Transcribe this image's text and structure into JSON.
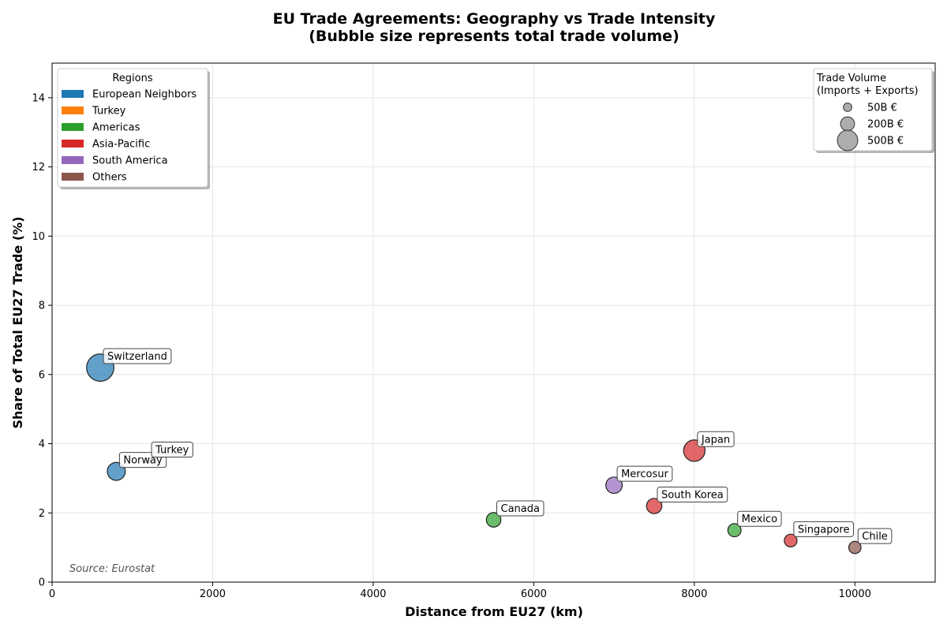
{
  "chart_data": {
    "type": "scatter",
    "title": "EU Trade Agreements: Geography vs Trade Intensity",
    "subtitle": "(Bubble size represents total trade volume)",
    "xlabel": "Distance from EU27 (km)",
    "ylabel": "Share of Total EU27 Trade (%)",
    "xlim": [
      0,
      11000
    ],
    "ylim": [
      0,
      15
    ],
    "xticks": [
      0,
      2000,
      4000,
      6000,
      8000,
      10000
    ],
    "yticks": [
      0,
      2,
      4,
      6,
      8,
      10,
      12,
      14
    ],
    "grid": true,
    "points": [
      {
        "label": "Switzerland",
        "x": 600,
        "y": 6.2,
        "volume": 320,
        "region": "European Neighbors"
      },
      {
        "label": "Norway",
        "x": 800,
        "y": 3.2,
        "volume": 110,
        "region": "European Neighbors"
      },
      {
        "label": "Turkey",
        "x": 1200,
        "y": 3.5,
        "volume": 0,
        "region": "Turkey"
      },
      {
        "label": "Canada",
        "x": 5500,
        "y": 1.8,
        "volume": 60,
        "region": "Americas"
      },
      {
        "label": "Mercosur",
        "x": 7000,
        "y": 2.8,
        "volume": 85,
        "region": "South America"
      },
      {
        "label": "Japan",
        "x": 8000,
        "y": 3.8,
        "volume": 175,
        "region": "Asia-Pacific"
      },
      {
        "label": "South Korea",
        "x": 7500,
        "y": 2.2,
        "volume": 70,
        "region": "Asia-Pacific"
      },
      {
        "label": "Mexico",
        "x": 8500,
        "y": 1.5,
        "volume": 45,
        "region": "Americas"
      },
      {
        "label": "Singapore",
        "x": 9200,
        "y": 1.2,
        "volume": 40,
        "region": "Asia-Pacific"
      },
      {
        "label": "Chile",
        "x": 10000,
        "y": 1.0,
        "volume": 35,
        "region": "Others"
      }
    ],
    "region_legend": {
      "title": "Regions",
      "placement": "top-left",
      "entries": [
        {
          "name": "European Neighbors",
          "color": "#1f77b4"
        },
        {
          "name": "Turkey",
          "color": "#ff7f0e"
        },
        {
          "name": "Americas",
          "color": "#2ca02c"
        },
        {
          "name": "Asia-Pacific",
          "color": "#d62728"
        },
        {
          "name": "South America",
          "color": "#9467bd"
        },
        {
          "name": "Others",
          "color": "#8c564b"
        }
      ]
    },
    "size_legend": {
      "title_line1": "Trade Volume",
      "title_line2": "(Imports + Exports)",
      "placement": "top-right",
      "entries": [
        {
          "label": "50B €",
          "volume": 50
        },
        {
          "label": "200B €",
          "volume": 200
        },
        {
          "label": "500B €",
          "volume": 500
        }
      ]
    },
    "source": "Source: Eurostat"
  }
}
